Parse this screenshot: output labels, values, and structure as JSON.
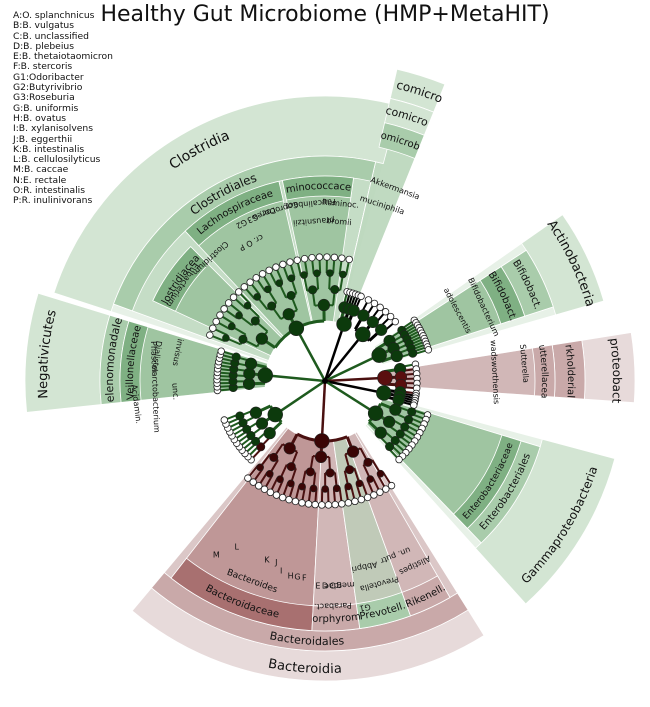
{
  "title": "Healthy Gut Microbiome (HMP+MetaHIT)",
  "legend": [
    "A:O. splanchnicus",
    "B:B. vulgatus",
    "C:B. unclassified",
    "D:B. plebeius",
    "E:B. thetaiotaomicron",
    "F:B. stercoris",
    "G1:Odoribacter",
    "G2:Butyrivibrio",
    "G3:Roseburia",
    "G:B. uniformis",
    "H:B. ovatus",
    "I:B. xylanisolvens",
    "J:B. eggerthii",
    "K:B. intestinalis",
    "L:B. cellulosilyticus",
    "M:B. caccae",
    "N:E. rectale",
    "O:R. intestinalis",
    "P:R. inulinivorans"
  ],
  "colors": {
    "green_outer": "#d3e5d3",
    "green_mid": "#a9ccab",
    "green_inner": "#7fb083",
    "red_outer": "#e7dada",
    "red_mid": "#c9a9a9",
    "red_inner": "#a87070",
    "branch_green": "#1e5a1e",
    "branch_red": "#4a1010",
    "branch_black": "#000000"
  },
  "center": {
    "x": 325,
    "y": 381
  },
  "clades": [
    {
      "label": "Clostridia",
      "a1": -162,
      "a2": -75,
      "r1": 225,
      "r2": 285,
      "fill": "green_outer",
      "lr": 264,
      "fs": 14
    },
    {
      "label": "Clostridiales",
      "a1": -160,
      "a2": -77,
      "r1": 205,
      "r2": 225,
      "fill": "green_mid",
      "lr": 215,
      "fs": 12
    },
    {
      "label": "Lachnospiraceae",
      "a1": -133,
      "a2": -103,
      "r1": 185,
      "r2": 205,
      "fill": "green_inner",
      "lr": 195,
      "fs": 10
    },
    {
      "label": "Ruminococcaceae",
      "a1": -102,
      "a2": -82,
      "r1": 185,
      "r2": 205,
      "fill": "green_inner",
      "lr": 195,
      "fs": 10
    },
    {
      "label": "Clostridiaceae",
      "a1": -155,
      "a2": -135,
      "r1": 165,
      "r2": 190,
      "fill": "green_inner",
      "lr": 178,
      "fs": 10
    },
    {
      "label": "Negativicutes",
      "a1": -186,
      "a2": -163,
      "r1": 225,
      "r2": 300,
      "fill": "green_outer",
      "lr": 282,
      "fs": 13
    },
    {
      "label": "Selenomonadales",
      "a1": -186,
      "a2": -163,
      "r1": 205,
      "r2": 225,
      "fill": "green_mid",
      "lr": 215,
      "fs": 11
    },
    {
      "label": "Veillonellaceae",
      "a1": -186,
      "a2": -163,
      "r1": 185,
      "r2": 205,
      "fill": "green_inner",
      "lr": 195,
      "fs": 10
    },
    {
      "label": "Verrucomicrobiae",
      "a1": -77,
      "a2": -68,
      "r1": 290,
      "r2": 320,
      "fill": "green_outer",
      "lr": 305,
      "fs": 12
    },
    {
      "label": "Verrucomicrobiales",
      "a1": -77,
      "a2": -68,
      "r1": 265,
      "r2": 290,
      "fill": "green_outer",
      "lr": 277,
      "fs": 11
    },
    {
      "label": "Verrucomicrobiaceae",
      "a1": -77,
      "a2": -68,
      "r1": 240,
      "r2": 265,
      "fill": "green_mid",
      "lr": 252,
      "fs": 10
    },
    {
      "label": "Actinobacteria",
      "a1": -35,
      "a2": -16,
      "r1": 240,
      "r2": 290,
      "fill": "green_outer",
      "lr": 276,
      "fs": 13
    },
    {
      "label": "Bifidobact.",
      "a1": -33,
      "a2": -18,
      "r1": 210,
      "r2": 240,
      "fill": "green_mid",
      "lr": 225,
      "fs": 10
    },
    {
      "label": "Bifidobact.",
      "a1": -33,
      "a2": -18,
      "r1": 185,
      "r2": 210,
      "fill": "green_inner",
      "lr": 198,
      "fs": 10
    },
    {
      "label": "Betaproteobacteria",
      "a1": -9,
      "a2": 4,
      "r1": 260,
      "r2": 310,
      "fill": "red_outer",
      "lr": 292,
      "fs": 12
    },
    {
      "label": "Burkholderiales",
      "a1": -9,
      "a2": 4,
      "r1": 230,
      "r2": 260,
      "fill": "red_mid",
      "lr": 246,
      "fs": 10
    },
    {
      "label": "Sutterellaceae",
      "a1": -9,
      "a2": 4,
      "r1": 210,
      "r2": 230,
      "fill": "red_mid",
      "lr": 220,
      "fs": 9
    },
    {
      "label": "Gammaproteobacteria",
      "a1": 15,
      "a2": 48,
      "r1": 225,
      "r2": 300,
      "fill": "green_outer",
      "lr": 282,
      "fs": 12
    },
    {
      "label": "Enterobacteriales",
      "a1": 17,
      "a2": 46,
      "r1": 205,
      "r2": 225,
      "fill": "green_mid",
      "lr": 215,
      "fs": 10
    },
    {
      "label": "Enterobacteriaceae",
      "a1": 17,
      "a2": 46,
      "r1": 185,
      "r2": 205,
      "fill": "green_inner",
      "lr": 195,
      "fs": 9
    },
    {
      "label": "Bacteroidia",
      "a1": 58,
      "a2": 130,
      "r1": 270,
      "r2": 300,
      "fill": "red_outer",
      "lr": 288,
      "fs": 13
    },
    {
      "label": "Bacteroidales",
      "a1": 58,
      "a2": 130,
      "r1": 250,
      "r2": 270,
      "fill": "red_mid",
      "lr": 261,
      "fs": 11
    },
    {
      "label": "Bacteroidaceae",
      "a1": 93,
      "a2": 128,
      "r1": 225,
      "r2": 250,
      "fill": "red_inner",
      "lr": 238,
      "fs": 10
    },
    {
      "label": "Porphyrom.",
      "a1": 82,
      "a2": 93,
      "r1": 225,
      "r2": 250,
      "fill": "red_mid",
      "lr": 238,
      "fs": 10
    },
    {
      "label": "Prevotell.",
      "a1": 70,
      "a2": 82,
      "r1": 225,
      "r2": 250,
      "fill": "green_mid",
      "lr": 238,
      "fs": 10
    },
    {
      "label": "Rikenell.",
      "a1": 60,
      "a2": 70,
      "r1": 225,
      "r2": 250,
      "fill": "red_mid",
      "lr": 238,
      "fs": 10
    }
  ],
  "leaf_labels": [
    {
      "t": "Eubacterium",
      "a": -146,
      "r": 172,
      "fs": 8
    },
    {
      "t": "Clostridium",
      "a": -133,
      "r": 168,
      "fs": 8
    },
    {
      "t": "G2",
      "a": -118,
      "r": 178,
      "fs": 8
    },
    {
      "t": "G3",
      "a": -114,
      "r": 178,
      "fs": 8
    },
    {
      "t": "Dorea",
      "a": -110,
      "r": 178,
      "fs": 8
    },
    {
      "t": "Coprococ.",
      "a": -105,
      "r": 178,
      "fs": 8
    },
    {
      "t": "cr. O P",
      "a": -118,
      "r": 157,
      "fs": 8
    },
    {
      "t": "Faecalinbact.",
      "a": -95,
      "r": 178,
      "fs": 8
    },
    {
      "t": "Ruminoc.",
      "a": -85,
      "r": 178,
      "fs": 8
    },
    {
      "t": "prausnitzii",
      "a": -94,
      "r": 160,
      "fs": 8
    },
    {
      "t": "bromii",
      "a": -85,
      "r": 160,
      "fs": 8
    },
    {
      "t": "Akkermansia",
      "a": -70,
      "r": 205,
      "fs": 8
    },
    {
      "t": "muciniphila",
      "a": -72,
      "r": 185,
      "fs": 8
    },
    {
      "t": "Bifidobacterium",
      "a": -25,
      "r": 175,
      "fs": 8
    },
    {
      "t": "adolescentis",
      "a": -28,
      "r": 150,
      "fs": 8
    },
    {
      "t": "Sutterella",
      "a": -5,
      "r": 200,
      "fs": 8
    },
    {
      "t": "wadsworthensis",
      "a": -3,
      "r": 170,
      "fs": 8
    },
    {
      "t": "Dialister",
      "a": -172,
      "r": 170,
      "fs": 8
    },
    {
      "t": "invisus",
      "a": -169,
      "r": 150,
      "fs": 8
    },
    {
      "t": "Phascolarctobacterium",
      "a": -182,
      "r": 170,
      "fs": 8
    },
    {
      "t": "Acidamin.",
      "a": -187,
      "r": 190,
      "fs": 8
    },
    {
      "t": "unc.",
      "a": -184,
      "r": 150,
      "fs": 8
    },
    {
      "t": "Bacteroides",
      "a": 110,
      "r": 213,
      "fs": 9
    },
    {
      "t": "merdae",
      "a": 86,
      "r": 205,
      "fs": 8
    },
    {
      "t": "Parabact.",
      "a": 88,
      "r": 225,
      "fs": 8
    },
    {
      "t": "Prevotella",
      "a": 75,
      "r": 210,
      "fs": 8
    },
    {
      "t": "Alistipes",
      "a": 64,
      "r": 205,
      "fs": 8
    },
    {
      "t": "G1",
      "a": 80,
      "r": 230,
      "fs": 8
    },
    {
      "t": "Abbpri",
      "a": 78,
      "r": 190,
      "fs": 8
    },
    {
      "t": "un. putr",
      "a": 68,
      "r": 188,
      "fs": 8
    }
  ],
  "letter_labels": [
    {
      "t": "M",
      "a": 122,
      "r": 205
    },
    {
      "t": "L",
      "a": 118,
      "r": 188
    },
    {
      "t": "K",
      "a": 108,
      "r": 188
    },
    {
      "t": "J",
      "a": 105,
      "r": 188
    },
    {
      "t": "I",
      "a": 103,
      "r": 195
    },
    {
      "t": "H",
      "a": 100,
      "r": 198
    },
    {
      "t": "G",
      "a": 98,
      "r": 198
    },
    {
      "t": "F",
      "a": 96,
      "r": 198
    },
    {
      "t": "E",
      "a": 92,
      "r": 205
    },
    {
      "t": "D",
      "a": 90,
      "r": 205
    },
    {
      "t": "C",
      "a": 88,
      "r": 205
    },
    {
      "t": "B",
      "a": 86,
      "r": 205
    }
  ]
}
